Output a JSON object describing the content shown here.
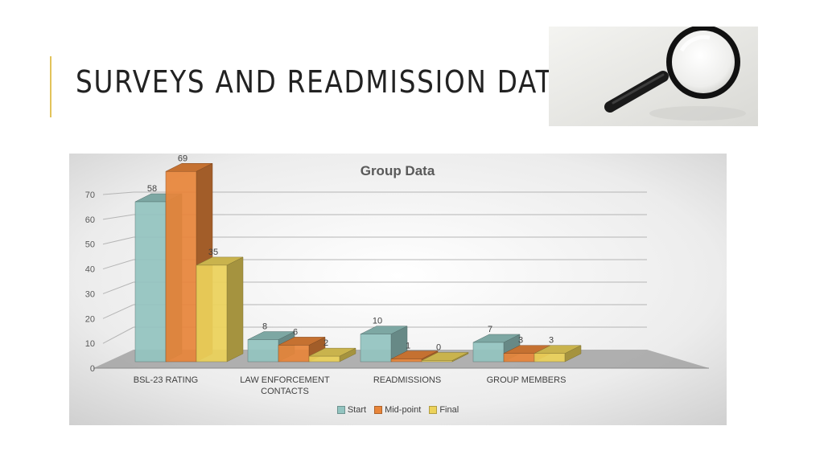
{
  "slide": {
    "title": "SURVEYS AND READMISSION DATA",
    "accent_color": "#e2c35a"
  },
  "image": {
    "icon": "magnifying-glass-icon"
  },
  "chart_data": {
    "type": "bar",
    "title": "Group Data",
    "categories": [
      "BSL-23 RATING",
      "LAW ENFORCEMENT CONTACTS",
      "READMISSIONS",
      "GROUP MEMBERS"
    ],
    "category_lines": [
      [
        "BSL-23 RATING"
      ],
      [
        "LAW ENFORCEMENT",
        "CONTACTS"
      ],
      [
        "READMISSIONS"
      ],
      [
        "GROUP MEMBERS"
      ]
    ],
    "series": [
      {
        "name": "Start",
        "values": [
          58,
          8,
          10,
          7
        ],
        "color": "#93c4c0"
      },
      {
        "name": "Mid-point",
        "values": [
          69,
          6,
          1,
          3
        ],
        "color": "#e8853a"
      },
      {
        "name": "Final",
        "values": [
          35,
          2,
          0,
          3
        ],
        "color": "#ecd25a"
      }
    ],
    "y_ticks": [
      "0",
      "10",
      "20",
      "30",
      "40",
      "50",
      "60",
      "70"
    ],
    "ylim": [
      0,
      70
    ],
    "grid": true,
    "legend_position": "bottom",
    "style": "3d-clustered-column"
  }
}
